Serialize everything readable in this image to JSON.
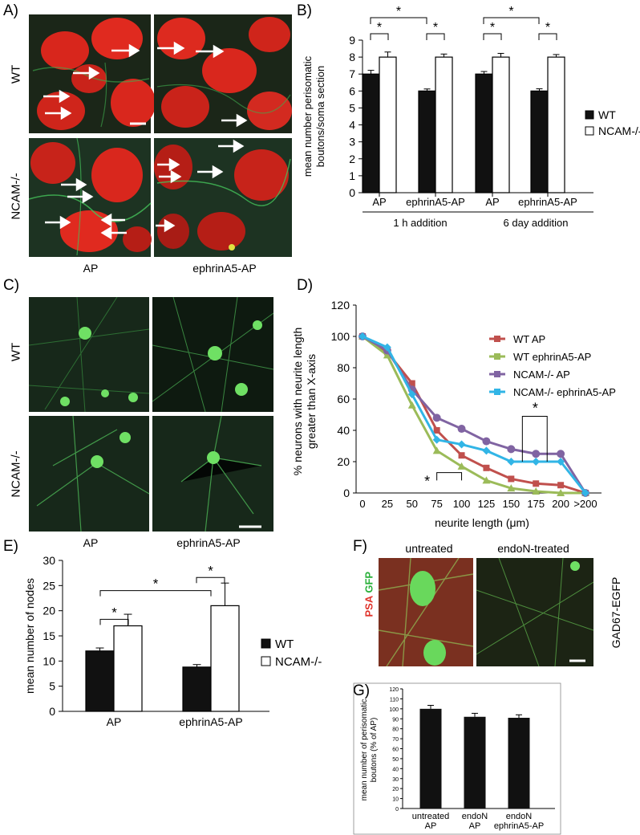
{
  "panels": {
    "A": "A)",
    "B": "B)",
    "C": "C)",
    "D": "D)",
    "E": "E)",
    "F": "F)",
    "G": "G)"
  },
  "panelA": {
    "row_labels": [
      "WT",
      "NCAM-/-"
    ],
    "col_labels": [
      "AP",
      "ephrinA5-AP"
    ],
    "colors": {
      "soma": "#e8281e",
      "fiber": "#3fae4f"
    }
  },
  "panelC": {
    "row_labels": [
      "WT",
      "NCAM-/-"
    ],
    "col_labels": [
      "AP",
      "ephrinA5-AP"
    ],
    "colors": {
      "neuron": "#5fdc5a"
    }
  },
  "panelF": {
    "col_labels": [
      "untreated",
      "endoN-treated"
    ],
    "side_label": "GAD67-EGFP",
    "stain_red": "PSA",
    "stain_green": "GFP"
  },
  "chart_data": [
    {
      "id": "B",
      "type": "bar",
      "ylabel": "mean number perisomatic boutons/soma section",
      "ylim": [
        0,
        9
      ],
      "yticks": [
        0,
        1,
        2,
        3,
        4,
        5,
        6,
        7,
        8,
        9
      ],
      "categories": [
        "AP",
        "ephrinA5-AP",
        "AP",
        "ephrinA5-AP"
      ],
      "groups": [
        "1 h addition",
        "6 day addition"
      ],
      "series": [
        {
          "name": "WT",
          "values": [
            7,
            6,
            7,
            6
          ],
          "errors": [
            0.22,
            0.12,
            0.15,
            0.13
          ],
          "color": "#111111"
        },
        {
          "name": "NCAM-/-",
          "values": [
            8,
            8,
            8,
            8
          ],
          "errors": [
            0.3,
            0.18,
            0.22,
            0.15
          ],
          "color": "#ffffff"
        }
      ],
      "significance": [
        "*",
        "*",
        "*",
        "*",
        "*",
        "*"
      ],
      "legend": "right"
    },
    {
      "id": "D",
      "type": "line",
      "xlabel": "neurite length (μm)",
      "ylabel": "% neurons with neurite length greater than X-axis",
      "ylim": [
        0,
        120
      ],
      "yticks": [
        0,
        20,
        40,
        60,
        80,
        100,
        120
      ],
      "x": [
        "0",
        "25",
        "50",
        "75",
        "100",
        "125",
        "150",
        "175",
        "200",
        ">200"
      ],
      "series": [
        {
          "name": "WT AP",
          "values": [
            100,
            90,
            70,
            40,
            24,
            16,
            9,
            6,
            5,
            0
          ],
          "color": "#c0504d"
        },
        {
          "name": "WT ephrinA5-AP",
          "values": [
            100,
            88,
            56,
            27,
            17,
            8,
            3,
            1,
            0,
            0
          ],
          "color": "#9bbb59"
        },
        {
          "name": "NCAM-/- AP",
          "values": [
            100,
            91,
            66,
            48,
            41,
            33,
            28,
            25,
            25,
            0
          ],
          "color": "#8064a2"
        },
        {
          "name": "NCAM-/- ephrinA5-AP",
          "values": [
            100,
            93,
            63,
            34,
            31,
            27,
            20,
            20,
            20,
            0
          ],
          "color": "#31b5e6"
        }
      ],
      "significance": [
        "*",
        "*"
      ],
      "legend": "top-right"
    },
    {
      "id": "E",
      "type": "bar",
      "ylabel": "mean number of nodes",
      "ylim": [
        0,
        30
      ],
      "yticks": [
        0,
        5,
        10,
        15,
        20,
        25,
        30
      ],
      "categories": [
        "AP",
        "ephrinA5-AP"
      ],
      "series": [
        {
          "name": "WT",
          "values": [
            12,
            8.8
          ],
          "errors": [
            0.6,
            0.5
          ],
          "color": "#111111"
        },
        {
          "name": "NCAM-/-",
          "values": [
            17,
            21
          ],
          "errors": [
            2.3,
            4.5
          ],
          "color": "#ffffff"
        }
      ],
      "significance": [
        "*",
        "*",
        "*"
      ],
      "legend": "right"
    },
    {
      "id": "G",
      "type": "bar",
      "ylabel": "mean number of perisomatic boutons (% of AP)",
      "ylim": [
        0,
        120
      ],
      "yticks": [
        0,
        10,
        20,
        30,
        40,
        50,
        60,
        70,
        80,
        90,
        100,
        110,
        120
      ],
      "categories": [
        "untreated AP",
        "endoN AP",
        "endoN ephrinA5-AP"
      ],
      "category_lines": [
        [
          "untreated",
          "AP"
        ],
        [
          "endoN",
          "AP"
        ],
        [
          "endoN",
          "ephrinA5-AP"
        ]
      ],
      "series": [
        {
          "name": "",
          "values": [
            100,
            92,
            91
          ],
          "errors": [
            3.5,
            3.5,
            3
          ],
          "color": "#111111"
        }
      ]
    }
  ]
}
